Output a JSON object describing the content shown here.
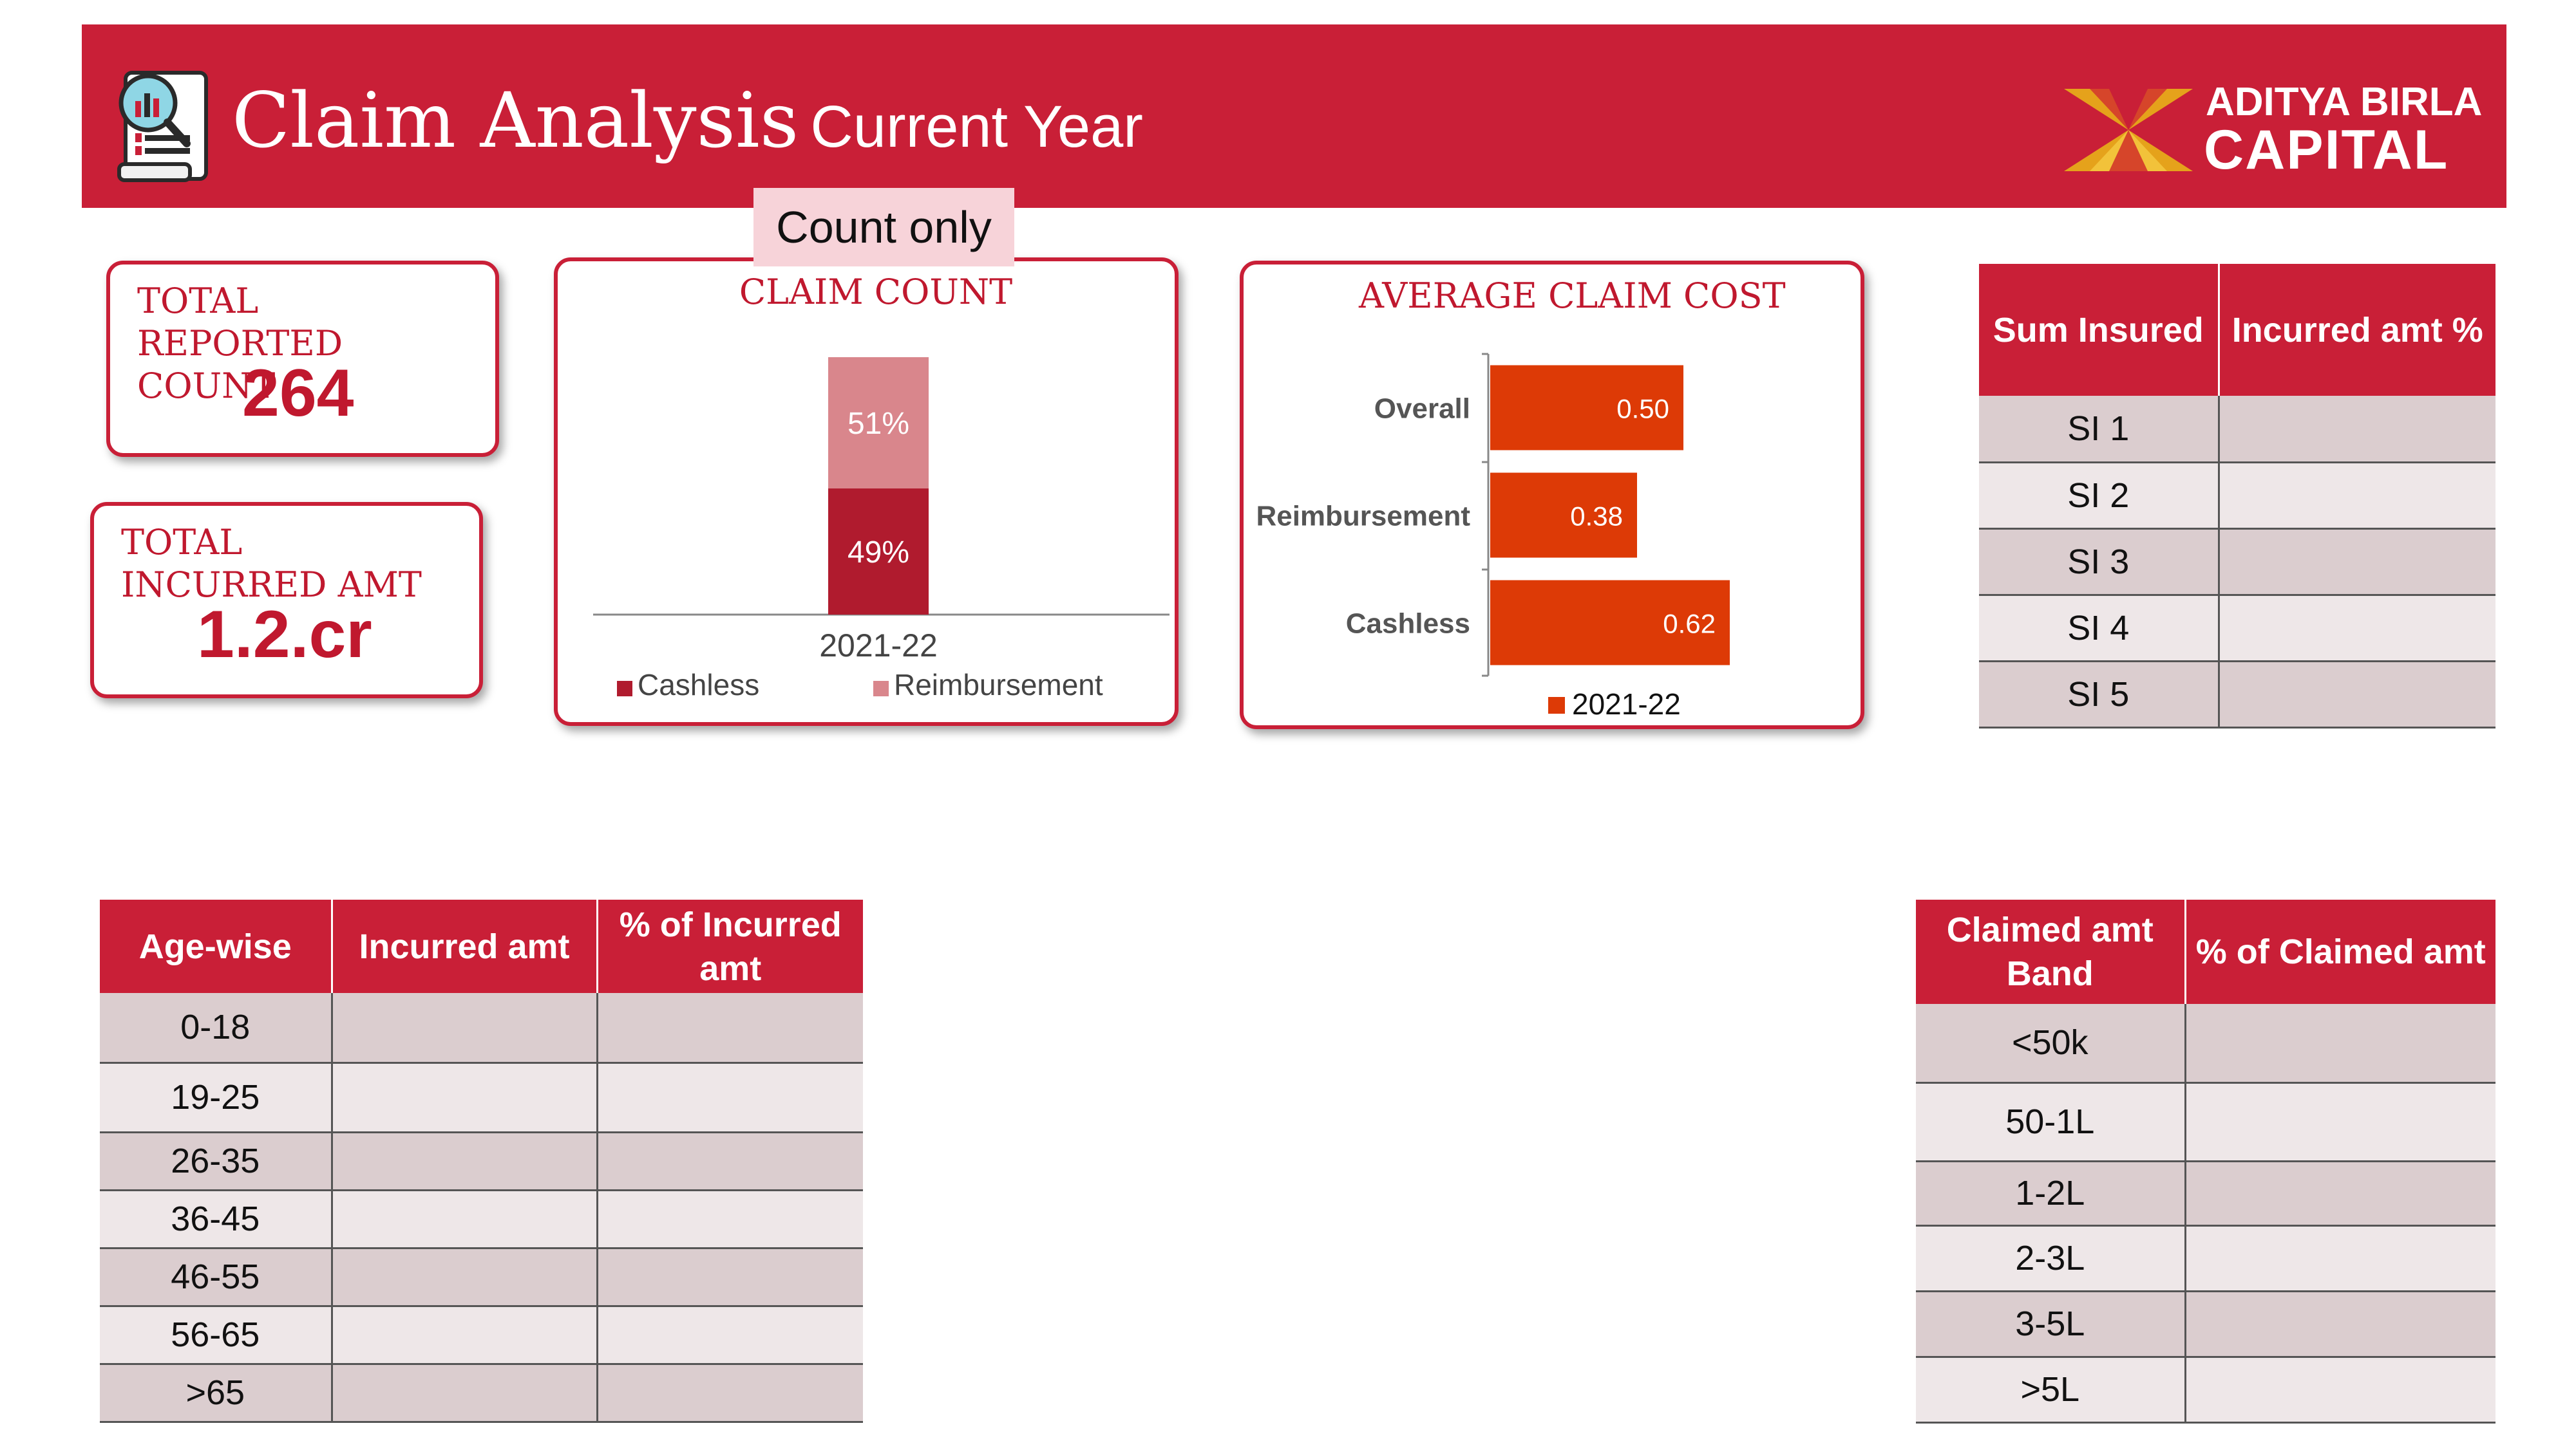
{
  "header": {
    "title": "Claim Analysis",
    "subtitle": "Current Year",
    "logo_line1": "ADITYA BIRLA",
    "logo_line2": "CAPITAL",
    "icon": "report-magnifier-icon",
    "colors": {
      "banner": "#c91f37",
      "accent_text": "#c0182e"
    }
  },
  "kpis": {
    "total_reported_label": "TOTAL REPORTED COUNT",
    "total_reported_value": "264",
    "total_incurred_label": "TOTAL INCURRED AMT",
    "total_incurred_value": "1.2.cr"
  },
  "tag": {
    "count_only": "Count only"
  },
  "chart_data": [
    {
      "type": "bar",
      "stacked": true,
      "title": "CLAIM COUNT",
      "categories": [
        "2021-22"
      ],
      "series": [
        {
          "name": "Cashless",
          "values": [
            49
          ],
          "label": "49%",
          "color": "#b01b2e"
        },
        {
          "name": "Reimbursement",
          "values": [
            51
          ],
          "label": "51%",
          "color": "#d9868c"
        }
      ],
      "ylim": [
        0,
        100
      ],
      "legend": "bottom"
    },
    {
      "type": "bar",
      "orientation": "horizontal",
      "title": "AVERAGE CLAIM COST",
      "categories": [
        "Overall",
        "Reimbursement",
        "Cashless"
      ],
      "series": [
        {
          "name": "2021-22",
          "values": [
            0.5,
            0.38,
            0.62
          ],
          "labels": [
            "0.50",
            "0.38",
            "0.62"
          ],
          "color": "#dd3a06"
        }
      ],
      "xlim": [
        0,
        0.7
      ],
      "legend": "bottom"
    }
  ],
  "sum_insured_table": {
    "headers": [
      "Sum Insured",
      "Incurred amt %"
    ],
    "rows": [
      [
        "SI 1",
        ""
      ],
      [
        "SI 2",
        ""
      ],
      [
        "SI 3",
        ""
      ],
      [
        "SI 4",
        ""
      ],
      [
        "SI 5",
        ""
      ]
    ]
  },
  "age_table": {
    "headers": [
      "Age-wise",
      "Incurred amt",
      "% of  Incurred amt"
    ],
    "rows": [
      [
        "0-18",
        "",
        ""
      ],
      [
        "19-25",
        "",
        ""
      ],
      [
        "26-35",
        "",
        ""
      ],
      [
        "36-45",
        "",
        ""
      ],
      [
        "46-55",
        "",
        ""
      ],
      [
        "56-65",
        "",
        ""
      ],
      [
        ">65",
        "",
        ""
      ]
    ]
  },
  "claimed_band_table": {
    "headers": [
      "Claimed amt Band",
      "% of Claimed amt"
    ],
    "rows": [
      [
        "<50k",
        ""
      ],
      [
        "50-1L",
        ""
      ],
      [
        "1-2L",
        ""
      ],
      [
        "2-3L",
        ""
      ],
      [
        "3-5L",
        ""
      ],
      [
        ">5L",
        ""
      ]
    ]
  }
}
